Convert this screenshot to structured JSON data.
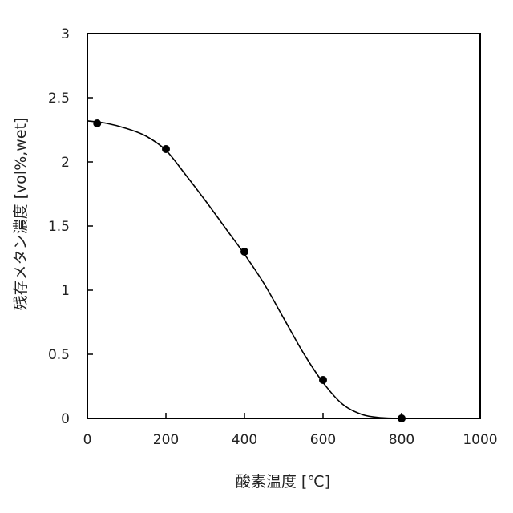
{
  "chart_data": {
    "type": "scatter",
    "title": "",
    "xlabel": "酸素温度 [℃]",
    "ylabel": "残存メタン濃度 [vol%,wet]",
    "xlim": [
      0,
      1000
    ],
    "ylim": [
      0,
      3
    ],
    "x_ticks": [
      0,
      200,
      400,
      600,
      800,
      1000
    ],
    "y_ticks": [
      0,
      0.5,
      1,
      1.5,
      2,
      2.5,
      3
    ],
    "x_tick_labels": [
      "0",
      "200",
      "400",
      "600",
      "800",
      "1000"
    ],
    "y_tick_labels": [
      "0",
      "0.5",
      "1",
      "1.5",
      "2",
      "2.5",
      "3"
    ],
    "grid": false,
    "legend": "none",
    "series": [
      {
        "x": [
          25,
          200,
          400,
          600,
          800
        ],
        "y": [
          2.3,
          2.1,
          1.3,
          0.3,
          0.0
        ],
        "marker": "circle",
        "color": "#000000"
      }
    ],
    "fit_curve": {
      "x": [
        0,
        50,
        100,
        150,
        200,
        250,
        300,
        350,
        400,
        450,
        500,
        550,
        600,
        650,
        700,
        750,
        800,
        840
      ],
      "y": [
        2.32,
        2.3,
        2.26,
        2.2,
        2.09,
        1.9,
        1.7,
        1.49,
        1.28,
        1.05,
        0.78,
        0.51,
        0.28,
        0.11,
        0.03,
        0.005,
        0.0,
        0.0
      ],
      "color": "#000000"
    }
  }
}
